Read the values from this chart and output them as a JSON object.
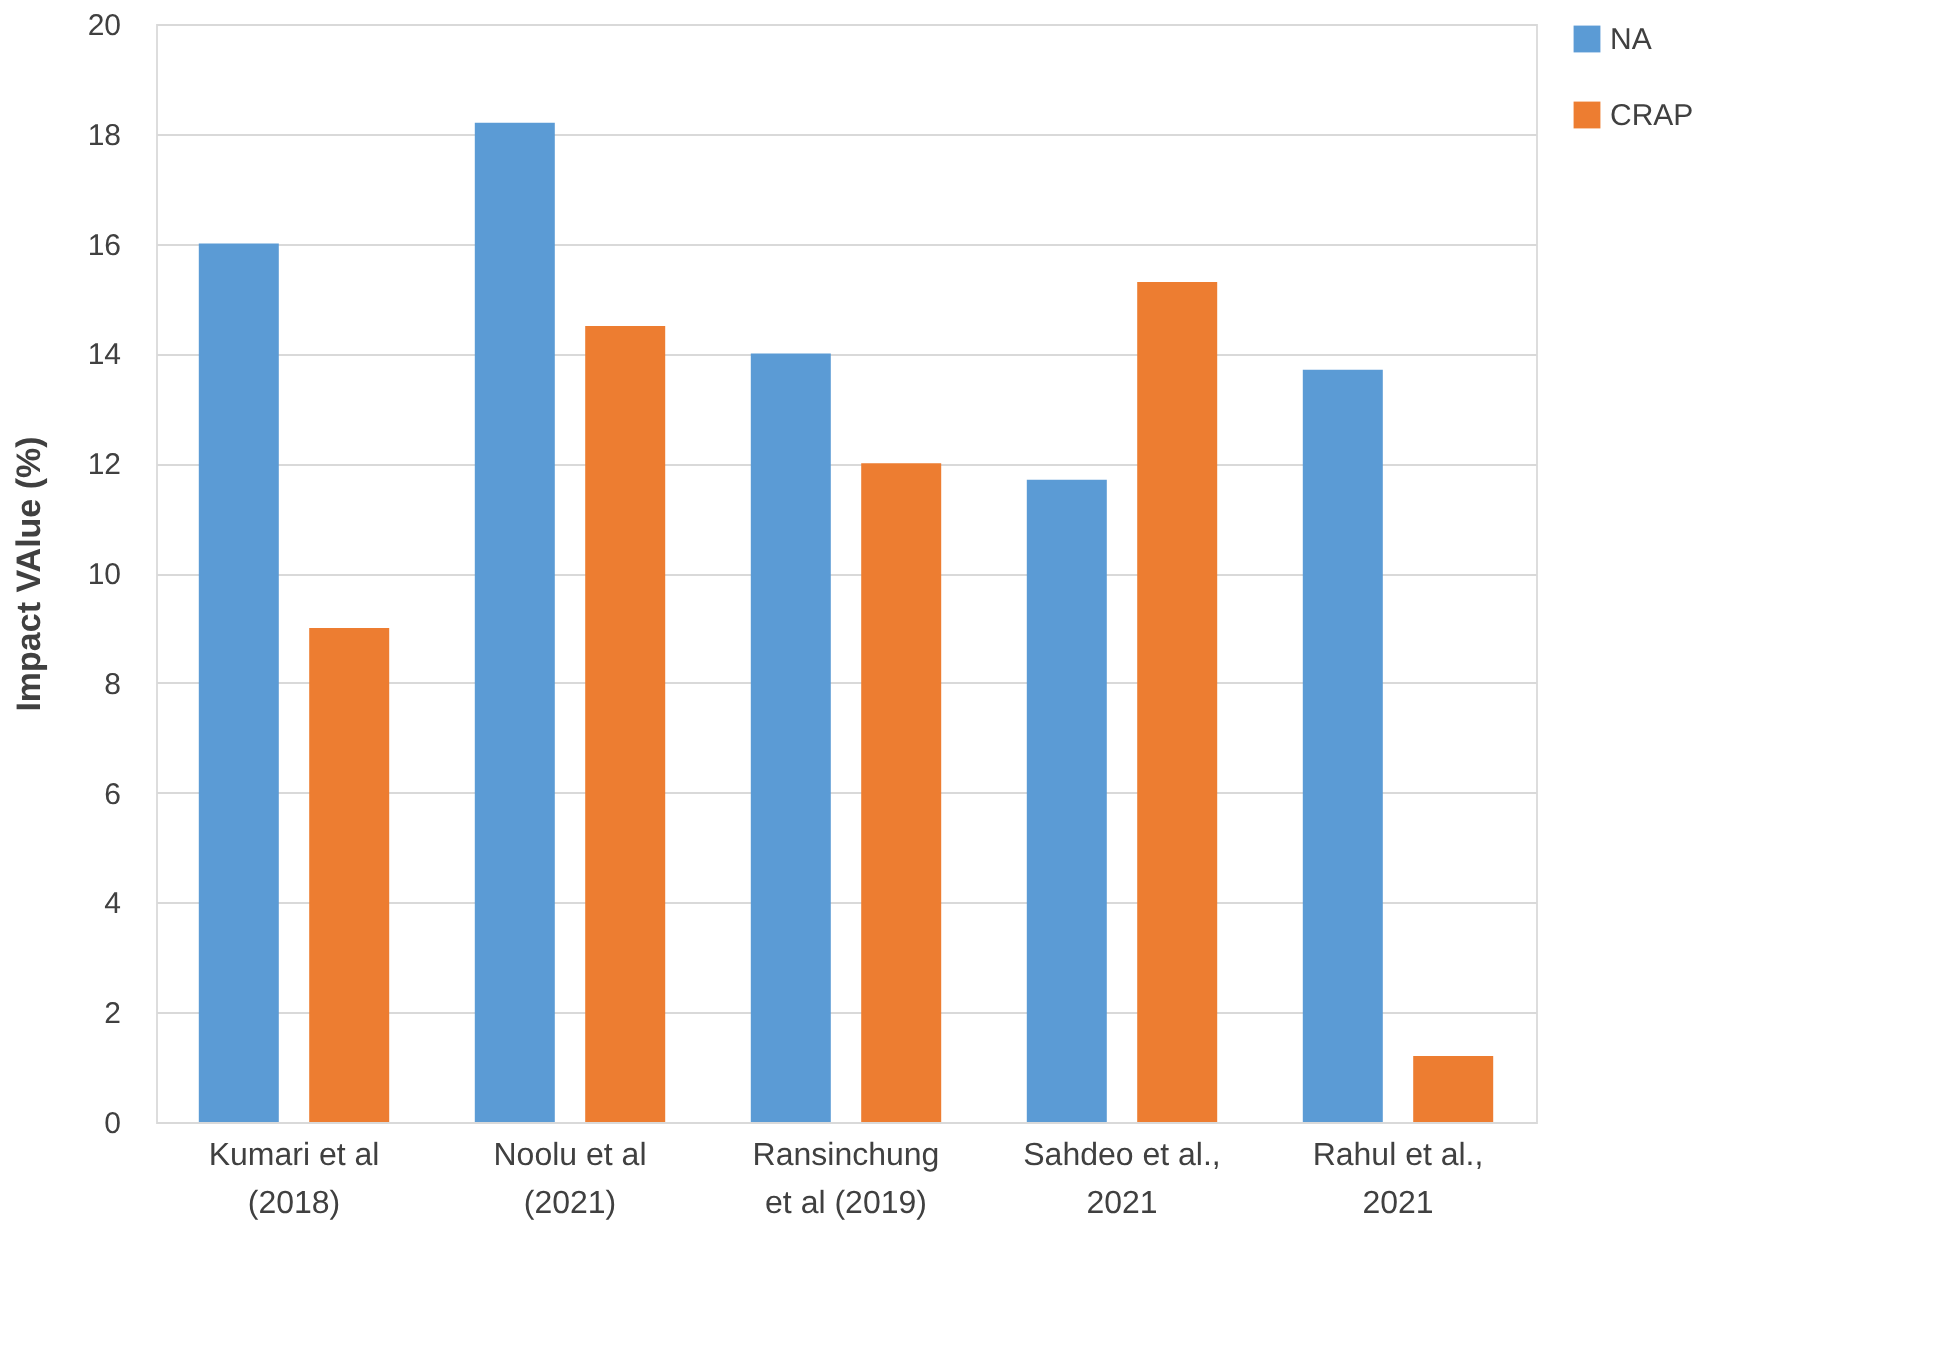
{
  "chart_data": {
    "type": "bar",
    "ylabel": "Impact VAlue (%)",
    "categories": [
      "Kumari et al\n(2018)",
      "Noolu et al\n(2021)",
      "Ransinchung\net al (2019)",
      "Sahdeo et al.,\n2021",
      "Rahul et al.,\n2021"
    ],
    "series": [
      {
        "name": "NA",
        "color": "#5b9bd5",
        "values": [
          16,
          18.2,
          14,
          11.7,
          13.7
        ]
      },
      {
        "name": "CRAP",
        "color": "#ed7d31",
        "values": [
          9,
          14.5,
          12,
          15.3,
          1.2
        ]
      }
    ],
    "ylim": [
      0,
      20
    ],
    "yticks": [
      0,
      2,
      4,
      6,
      8,
      10,
      12,
      14,
      16,
      18,
      20
    ],
    "grid": "y",
    "legend": "right"
  }
}
